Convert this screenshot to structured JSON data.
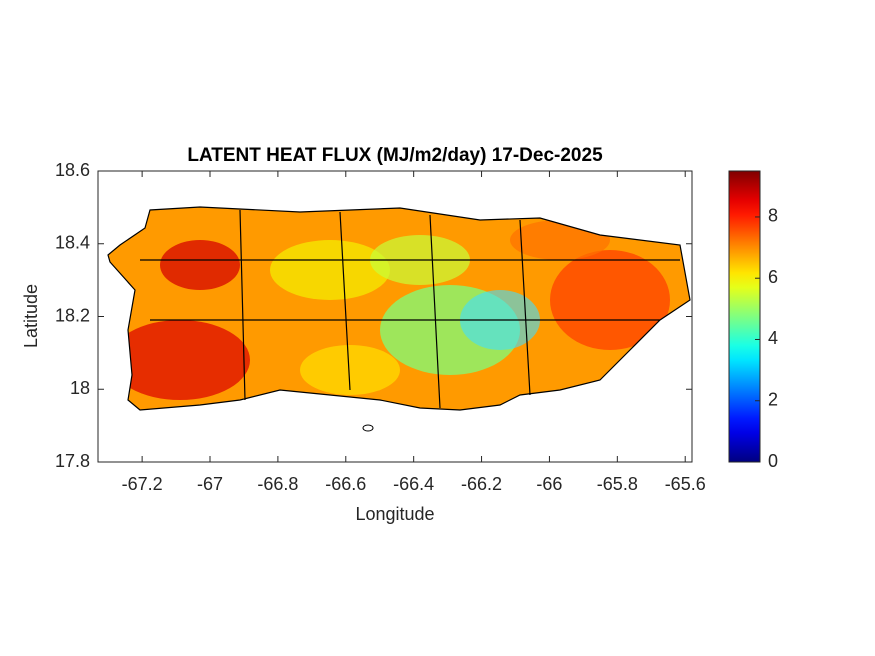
{
  "chart_data": {
    "type": "map",
    "title": "LATENT HEAT FLUX (MJ/m2/day) 17-Dec-2025",
    "x_label": "Longitude",
    "y_label": "Latitude",
    "xlim": [
      -67.33,
      -65.58
    ],
    "xticks": [
      -67.2,
      -67,
      -66.8,
      -66.6,
      -66.4,
      -66.2,
      -66,
      -65.8,
      -65.6
    ],
    "ylim": [
      17.8,
      18.6
    ],
    "yticks": [
      17.8,
      18,
      18.2,
      18.4,
      18.6
    ],
    "colormap": "jet",
    "clim": [
      0,
      9.5
    ],
    "cticks": [
      0,
      2,
      4,
      6,
      8
    ]
  }
}
